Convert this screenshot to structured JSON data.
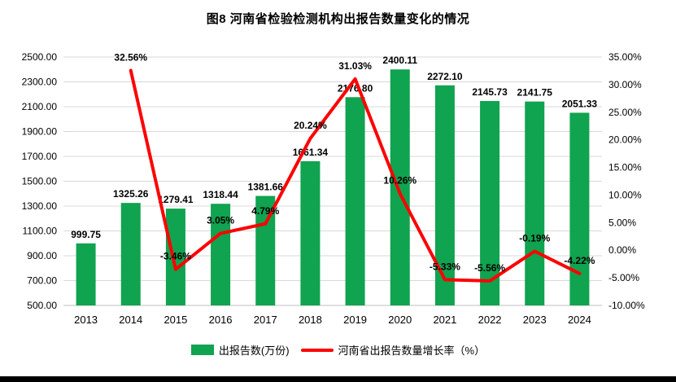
{
  "chart_data": {
    "type": "combo",
    "title": "图8  河南省检验检测机构出报告数量变化的情况",
    "categories": [
      "2013",
      "2014",
      "2015",
      "2016",
      "2017",
      "2018",
      "2019",
      "2020",
      "2021",
      "2022",
      "2023",
      "2024"
    ],
    "series": [
      {
        "name": "出报告数(万份)",
        "type": "bar",
        "color": "#10A350",
        "axis": "left",
        "values": [
          999.75,
          1325.26,
          1279.41,
          1318.44,
          1381.66,
          1661.34,
          2176.8,
          2400.11,
          2272.1,
          2145.73,
          2141.75,
          2051.33
        ],
        "labels": [
          "999.75",
          "1325.26",
          "1279.41",
          "1318.44",
          "1381.66",
          "1661.34",
          "2176.80",
          "2400.11",
          "2272.10",
          "2145.73",
          "2141.75",
          "2051.33"
        ]
      },
      {
        "name": "河南省出报告数量增长率（%）",
        "type": "line",
        "color": "#FF0000",
        "axis": "right",
        "values": [
          null,
          32.56,
          -3.46,
          3.05,
          4.79,
          20.24,
          31.03,
          10.26,
          -5.33,
          -5.56,
          -0.19,
          -4.22
        ],
        "labels": [
          "",
          "32.56%",
          "-3.46%",
          "3.05%",
          "4.79%",
          "20.24%",
          "31.03%",
          "10.26%",
          "-5.33%",
          "-5.56%",
          "-0.19%",
          "-4.22%"
        ]
      }
    ],
    "left_axis": {
      "min": 500,
      "max": 2500,
      "step": 200,
      "tick_labels": [
        "500.00",
        "700.00",
        "900.00",
        "1100.00",
        "1300.00",
        "1500.00",
        "1700.00",
        "1900.00",
        "2100.00",
        "2300.00",
        "2500.00"
      ]
    },
    "right_axis": {
      "min": -10,
      "max": 35,
      "step": 5,
      "tick_labels": [
        "-10.00%",
        "-5.00%",
        "0.00%",
        "5.00%",
        "10.00%",
        "15.00%",
        "20.00%",
        "25.00%",
        "30.00%",
        "35.00%"
      ]
    },
    "grid": true,
    "grid_color": "#D8D8D8",
    "axis_line_color": "#BFBFBF",
    "legend_position": "bottom"
  }
}
